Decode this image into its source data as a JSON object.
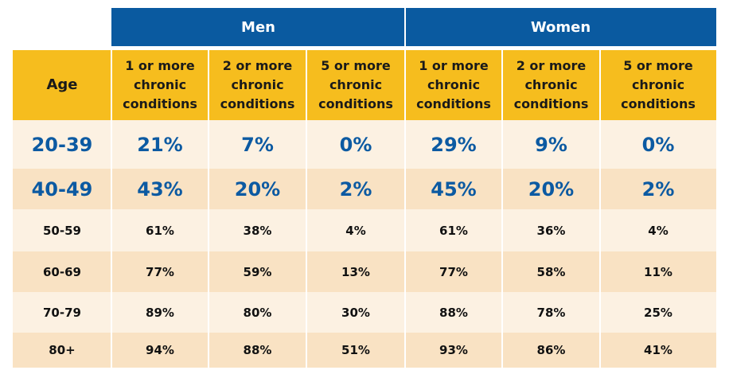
{
  "chart_data": {
    "type": "table",
    "group_headers": [
      "Men",
      "Women"
    ],
    "column_headers": [
      "Age",
      "1 or more chronic conditions",
      "2 or more chronic conditions",
      "5 or more chronic conditions",
      "1 or more chronic conditions",
      "2 or more chronic conditions",
      "5 or more chronic conditions"
    ],
    "rows": [
      [
        "20-39",
        "21%",
        "7%",
        "0%",
        "29%",
        "9%",
        "0%"
      ],
      [
        "40-49",
        "43%",
        "20%",
        "2%",
        "45%",
        "20%",
        "2%"
      ],
      [
        "50-59",
        "61%",
        "38%",
        "4%",
        "61%",
        "36%",
        "4%"
      ],
      [
        "60-69",
        "77%",
        "59%",
        "13%",
        "77%",
        "58%",
        "11%"
      ],
      [
        "70-79",
        "89%",
        "80%",
        "30%",
        "88%",
        "78%",
        "25%"
      ],
      [
        "80+",
        "94%",
        "88%",
        "51%",
        "93%",
        "86%",
        "41%"
      ]
    ],
    "colors": {
      "group_header_bg": "#0a5aa0",
      "column_header_bg": "#f6bd1e",
      "highlight_text": "#0c5aa2",
      "row_light": "#fcf1e2",
      "row_dark": "#f9e2c3"
    }
  }
}
